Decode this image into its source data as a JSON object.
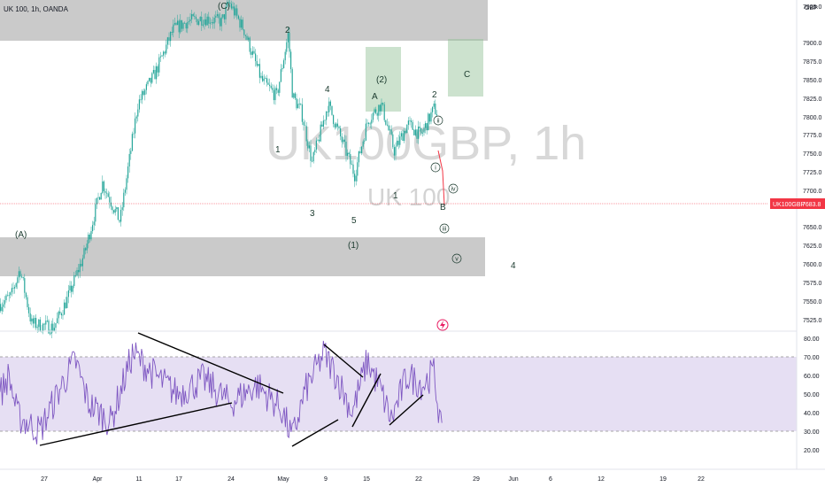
{
  "header": {
    "symbol": "UK 100, 1h, OANDA"
  },
  "watermark": {
    "main": "UK100GBP, 1h",
    "sub": "UK 100"
  },
  "colors": {
    "candle": "#26a69a",
    "price_line": "#f23645",
    "zone": "#9e9e9e",
    "target_zone": "#8fbf93",
    "rsi": "#7e57c2",
    "rsi_band": "#d1c4e9",
    "ink": "#1b3a2e",
    "axis_text": "#131722"
  },
  "price_axis": {
    "currency": "GBP",
    "ticks": [
      "7925.0",
      "7900.0",
      "7875.0",
      "7850.0",
      "7825.0",
      "7800.0",
      "7775.0",
      "7750.0",
      "7725.0",
      "7700.0",
      "7650.0",
      "7625.0",
      "7600.0",
      "7575.0",
      "7550.0",
      "7525.0"
    ],
    "last_price_label": "UK100GBP",
    "last_price": "7683.8"
  },
  "rsi_axis": {
    "ticks": [
      "80.00",
      "70.00",
      "60.00",
      "50.00",
      "40.00",
      "30.00",
      "20.00"
    ]
  },
  "time_axis": {
    "ticks": [
      "27",
      "Apr",
      "11",
      "17",
      "24",
      "May",
      "9",
      "15",
      "22",
      "29",
      "Jun",
      "6",
      "12",
      "19",
      "22"
    ]
  },
  "wave_labels": [
    "(C)",
    "2",
    "4",
    "1",
    "3",
    "5",
    "(A)",
    "(2)",
    "A",
    "(1)",
    "1",
    "2",
    "B",
    "C",
    "4"
  ],
  "circled_labels": [
    "ii",
    "i",
    "iv",
    "iii",
    "v"
  ],
  "chart_data": {
    "type": "line",
    "title": "UK 100, 1h, OANDA",
    "xlabel": "",
    "ylabel": "GBP",
    "ylim": [
      7520,
      7955
    ],
    "x": [
      "27",
      "Apr",
      "11",
      "17",
      "24",
      "May",
      "9",
      "15",
      "22"
    ],
    "series": [
      {
        "values": [
          7560,
          7640,
          7790,
          7915,
          7915,
          7730,
          7760,
          7760,
          7780
        ]
      }
    ],
    "last_value": 7683.8,
    "rsi": {
      "ylim": [
        18,
        84
      ],
      "band": [
        30,
        70
      ],
      "x": [
        "27",
        "Apr",
        "11",
        "17",
        "24",
        "May",
        "9",
        "15",
        "22"
      ],
      "values": [
        45,
        30,
        72,
        55,
        50,
        25,
        60,
        50,
        40
      ]
    },
    "grid": false
  }
}
